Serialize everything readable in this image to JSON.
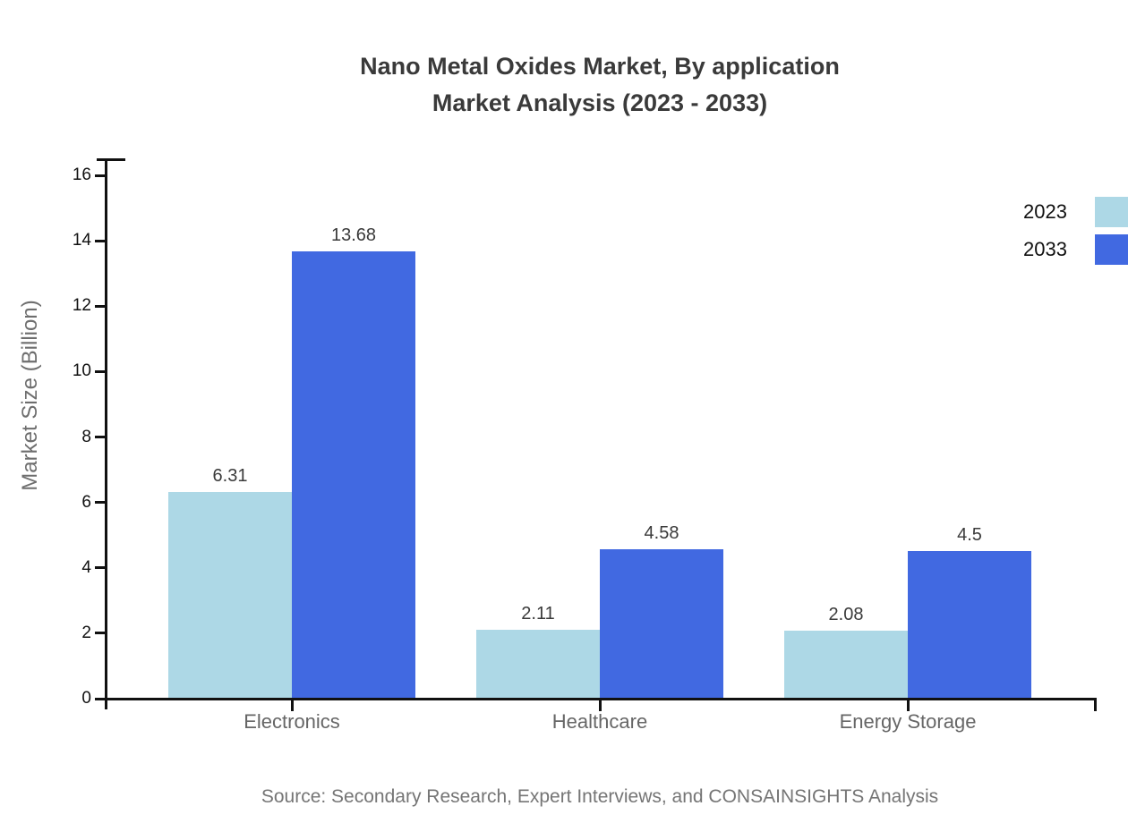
{
  "title": {
    "line1": "Nano Metal Oxides Market, By application",
    "line2": "Market Analysis (2023 - 2033)"
  },
  "source_note": "Source: Secondary Research, Expert Interviews, and CONSAINSIGHTS Analysis",
  "colors": {
    "series_2023": "#ADD8E6",
    "series_2033": "#4169E1",
    "axis": "#111111",
    "title_text": "#3a3a3a",
    "category_text": "#666666",
    "ylabel_text": "#6e6e6e",
    "value_label_text": "#3a3a3a",
    "source_text": "#757575",
    "background": "#ffffff"
  },
  "chart_data": {
    "type": "bar",
    "title": "Nano Metal Oxides Market, By application Market Analysis (2023 - 2033)",
    "categories": [
      "Electronics",
      "Healthcare",
      "Energy Storage"
    ],
    "series": [
      {
        "name": "2023",
        "color": "#ADD8E6",
        "values": [
          6.31,
          2.11,
          2.08
        ],
        "labels": [
          "6.31",
          "2.11",
          "2.08"
        ]
      },
      {
        "name": "2033",
        "color": "#4169E1",
        "values": [
          13.68,
          4.58,
          4.5
        ],
        "labels": [
          "13.68",
          "4.58",
          "4.5"
        ]
      }
    ],
    "xlabel": "",
    "ylabel": "Market Size (Billion)",
    "ylim": [
      0,
      16
    ],
    "yticks": [
      0,
      2,
      4,
      6,
      8,
      10,
      12,
      14,
      16
    ],
    "grid": false,
    "legend_position": "top-right",
    "bar_value_labels_shown": true
  }
}
